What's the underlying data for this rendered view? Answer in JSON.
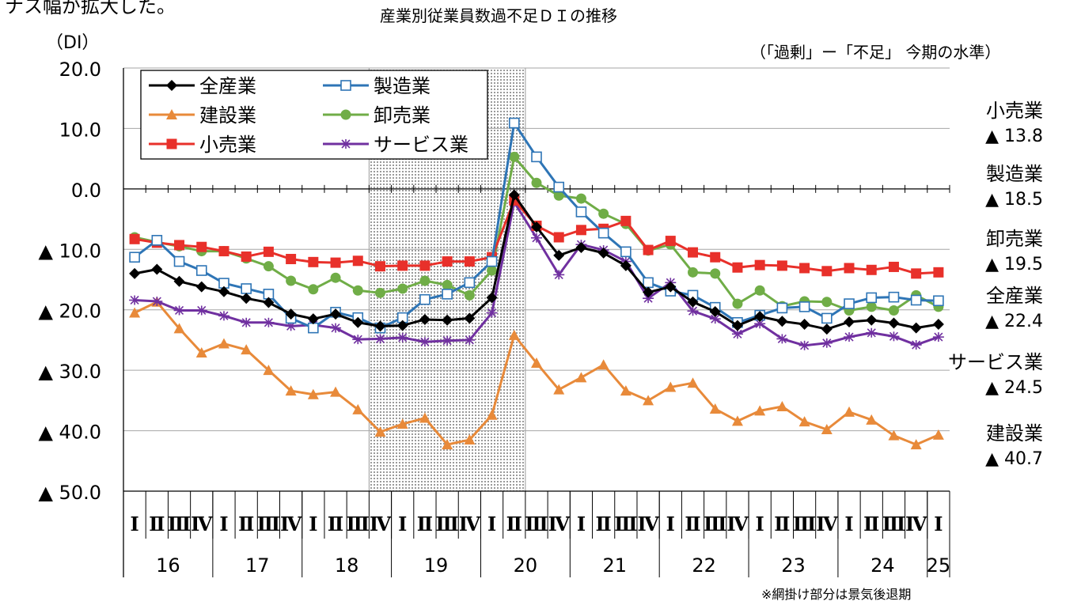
{
  "intro_text": "ナス幅が拡大した。",
  "chart_data": {
    "type": "line",
    "title": "産業別従業員数過不足ＤＩの推移",
    "ylabel": "（DI）",
    "note_top_right": "（「過剰」ー「不足」 今期の水準）",
    "footnote": "※網掛け部分は景気後退期",
    "ylim": [
      -50,
      20
    ],
    "y_ticks": [
      {
        "value": 20,
        "label": "20.0"
      },
      {
        "value": 10,
        "label": "10.0"
      },
      {
        "value": 0,
        "label": "0.0"
      },
      {
        "value": -10,
        "label": "▲ 10.0"
      },
      {
        "value": -20,
        "label": "▲ 20.0"
      },
      {
        "value": -30,
        "label": "▲ 30.0"
      },
      {
        "value": -40,
        "label": "▲ 40.0"
      },
      {
        "value": -50,
        "label": "▲ 50.0"
      }
    ],
    "quarters": [
      "Ⅰ",
      "Ⅱ",
      "Ⅲ",
      "Ⅳ",
      "Ⅰ",
      "Ⅱ",
      "Ⅲ",
      "Ⅳ",
      "Ⅰ",
      "Ⅱ",
      "Ⅲ",
      "Ⅳ",
      "Ⅰ",
      "Ⅱ",
      "Ⅲ",
      "Ⅳ",
      "Ⅰ",
      "Ⅱ",
      "Ⅲ",
      "Ⅳ",
      "Ⅰ",
      "Ⅱ",
      "Ⅲ",
      "Ⅳ",
      "Ⅰ",
      "Ⅱ",
      "Ⅲ",
      "Ⅳ",
      "Ⅰ",
      "Ⅱ",
      "Ⅲ",
      "Ⅳ",
      "Ⅰ",
      "Ⅱ",
      "Ⅲ",
      "Ⅳ",
      "Ⅰ"
    ],
    "years": [
      "16",
      "17",
      "18",
      "19",
      "20",
      "21",
      "22",
      "23",
      "24",
      "25"
    ],
    "recession_shading": {
      "from_index": 11,
      "to_index": 17
    },
    "series": [
      {
        "name": "全産業",
        "color": "#000000",
        "marker": "diamond",
        "values": [
          -14,
          -13.3,
          -15.3,
          -16.2,
          -17,
          -18.1,
          -18.8,
          -20.7,
          -21.5,
          -20.7,
          -22.1,
          -22.7,
          -22.6,
          -21.6,
          -21.7,
          -21.4,
          -18,
          -1,
          -6.3,
          -11,
          -9.7,
          -10.6,
          -12.7,
          -17.1,
          -16.2,
          -18.7,
          -20.3,
          -22.6,
          -21.1,
          -21.9,
          -22.4,
          -23.2,
          -22,
          -21.7,
          -22.2,
          -23,
          -22.4
        ]
      },
      {
        "name": "製造業",
        "color": "#2E75B6",
        "marker": "square-open",
        "values": [
          -11.3,
          -8.5,
          -12,
          -13.5,
          -15.6,
          -16.5,
          -17.4,
          -21.4,
          -23,
          -20.4,
          -21.3,
          -23,
          -21.3,
          -18.3,
          -17.4,
          -15.5,
          -12,
          10.9,
          5.3,
          0.3,
          -3.8,
          -7.3,
          -10.4,
          -15.5,
          -16.9,
          -17.6,
          -19.6,
          -22.1,
          -20.9,
          -19.7,
          -19.5,
          -21.4,
          -19,
          -18,
          -17.9,
          -18.4,
          -18.5
        ]
      },
      {
        "name": "建設業",
        "color": "#E88A3A",
        "marker": "triangle",
        "values": [
          -20.5,
          -18.7,
          -23.1,
          -27.1,
          -25.6,
          -26.6,
          -30,
          -33.4,
          -34,
          -33.6,
          -36.5,
          -40.2,
          -38.9,
          -37.9,
          -42.3,
          -41.5,
          -37.4,
          -24.2,
          -28.8,
          -33.2,
          -31.2,
          -29.1,
          -33.4,
          -35,
          -32.8,
          -32.1,
          -36.4,
          -38.4,
          -36.7,
          -36,
          -38.5,
          -39.8,
          -36.9,
          -38.2,
          -40.8,
          -42.3,
          -40.7
        ]
      },
      {
        "name": "卸売業",
        "color": "#70AD47",
        "marker": "circle",
        "values": [
          -8,
          -8.8,
          -9.5,
          -10.3,
          -10.3,
          -11.5,
          -12.8,
          -15.2,
          -16.6,
          -14.7,
          -16.8,
          -17.2,
          -16.5,
          -15.2,
          -15.9,
          -17.6,
          -13.5,
          5.3,
          1,
          -1.1,
          -1.6,
          -4.1,
          -5.8,
          -10.2,
          -9.2,
          -13.8,
          -14,
          -19,
          -16.8,
          -19.4,
          -18.6,
          -18.7,
          -20.1,
          -19.5,
          -20.1,
          -17.6,
          -19.5
        ]
      },
      {
        "name": "小売業",
        "color": "#E8302A",
        "marker": "square",
        "values": [
          -8.3,
          -8.9,
          -9.3,
          -9.6,
          -10.3,
          -11.2,
          -10.4,
          -11.6,
          -12.1,
          -12.2,
          -11.9,
          -12.8,
          -12.7,
          -12.7,
          -12,
          -12,
          -11.3,
          -1.9,
          -6.1,
          -8,
          -6.8,
          -6.6,
          -5.3,
          -10.1,
          -8.6,
          -10.5,
          -11.3,
          -13,
          -12.6,
          -12.7,
          -13.1,
          -13.6,
          -13.1,
          -13.4,
          -12.9,
          -14,
          -13.8
        ]
      },
      {
        "name": "サービス業",
        "color": "#7030A0",
        "marker": "star",
        "values": [
          -18.4,
          -18.6,
          -20.1,
          -20.1,
          -21,
          -22.1,
          -22.1,
          -22.7,
          -22.5,
          -23,
          -24.9,
          -24.8,
          -24.6,
          -25.3,
          -25.1,
          -25,
          -20.5,
          -2.2,
          -8.1,
          -14.2,
          -9.2,
          -10.1,
          -12,
          -18.1,
          -15.5,
          -20.2,
          -21.5,
          -24,
          -22.3,
          -24.8,
          -25.9,
          -25.5,
          -24.5,
          -23.8,
          -24.4,
          -25.8,
          -24.5
        ]
      }
    ],
    "legend_order": [
      "全産業",
      "製造業",
      "建設業",
      "卸売業",
      "小売業",
      "サービス業"
    ],
    "latest_levels": [
      {
        "name": "小売業",
        "value": "▲ 13.8"
      },
      {
        "name": "製造業",
        "value": "▲ 18.5"
      },
      {
        "name": "卸売業",
        "value": "▲ 19.5"
      },
      {
        "name": "全産業",
        "value": "▲ 22.4"
      },
      {
        "name": "サービス業",
        "value": "▲ 24.5"
      },
      {
        "name": "建設業",
        "value": "▲ 40.7"
      }
    ]
  }
}
